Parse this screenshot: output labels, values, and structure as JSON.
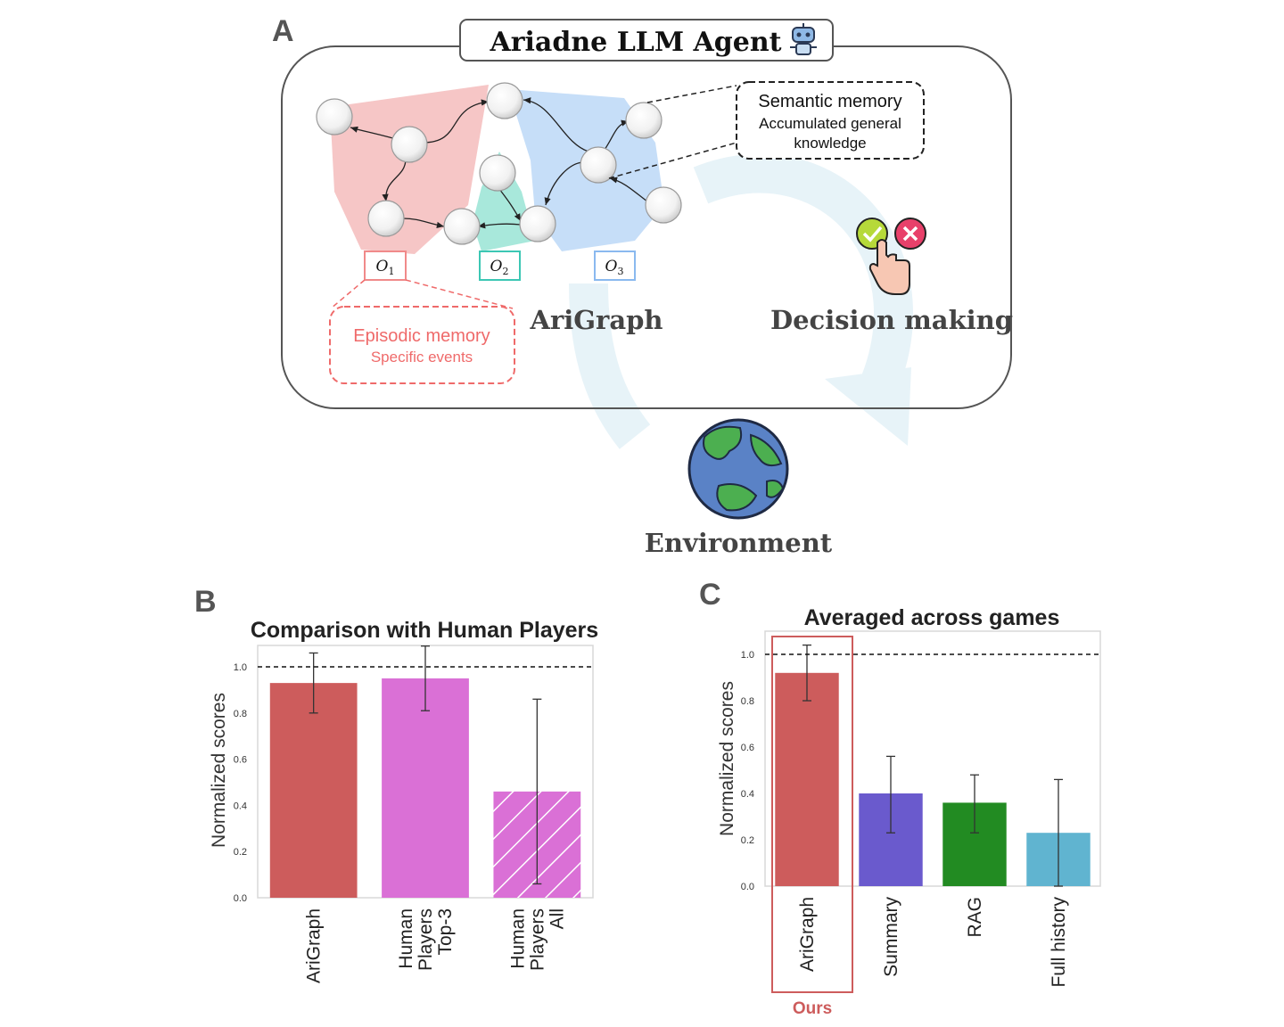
{
  "panel_a": {
    "letter": "A",
    "title": "Ariadne LLM Agent",
    "observations": [
      "O",
      "O",
      "O"
    ],
    "observation_subs": [
      "1",
      "2",
      "3"
    ],
    "semantic": {
      "title": "Semantic memory",
      "line1": "Accumulated general",
      "line2": "knowledge"
    },
    "episodic": {
      "title": "Episodic memory",
      "sub": "Specific events"
    },
    "arigraph_label": "AriGraph",
    "decision_label": "Decision making",
    "environment_label": "Environment",
    "icons": [
      "robot-icon",
      "check-icon",
      "cross-icon",
      "hand-pointer-icon",
      "earth-icon"
    ],
    "colors": {
      "o1": "#f08a8a",
      "o2": "#3cc7b4",
      "o3": "#8ab9ef",
      "episodic": "#ef6a6a",
      "loop_arrow": "#e6f3f8"
    }
  },
  "chart_data": [
    {
      "letter": "B",
      "type": "bar",
      "title": "Comparison with Human Players",
      "ylabel": "Normalized scores",
      "xlabel": "",
      "ylim": [
        0,
        1.0
      ],
      "yticks": [
        "0.0",
        "0.2",
        "0.4",
        "0.6",
        "0.8",
        "1.0"
      ],
      "reference_line": 1.0,
      "grid": false,
      "categories": [
        [
          "AriGraph"
        ],
        [
          "Human",
          "Players",
          "Top-3"
        ],
        [
          "Human",
          "Players",
          "All"
        ]
      ],
      "values": [
        0.93,
        0.95,
        0.46
      ],
      "errors": [
        [
          0.8,
          1.06
        ],
        [
          0.81,
          1.09
        ],
        [
          0.06,
          0.86
        ]
      ],
      "colors": [
        "#cd5c5c",
        "#da70d6",
        "#da70d6"
      ],
      "hatched": [
        false,
        false,
        true
      ]
    },
    {
      "letter": "C",
      "type": "bar",
      "title": "Averaged across games",
      "ylabel": "Normalized scores",
      "xlabel": "",
      "ylim": [
        0,
        1.0
      ],
      "yticks": [
        "0.0",
        "0.2",
        "0.4",
        "0.6",
        "0.8",
        "1.0"
      ],
      "reference_line": 1.0,
      "grid": false,
      "categories": [
        [
          "AriGraph"
        ],
        [
          "Summary"
        ],
        [
          "RAG"
        ],
        [
          "Full history"
        ]
      ],
      "values": [
        0.92,
        0.4,
        0.36,
        0.23
      ],
      "errors": [
        [
          0.8,
          1.04
        ],
        [
          0.23,
          0.56
        ],
        [
          0.23,
          0.48
        ],
        [
          0.0,
          0.46
        ]
      ],
      "colors": [
        "#cd5c5c",
        "#6a5acd",
        "#228b22",
        "#60b4d0"
      ],
      "hatched": [
        false,
        false,
        false,
        false
      ],
      "highlight_label": "Ours"
    }
  ]
}
